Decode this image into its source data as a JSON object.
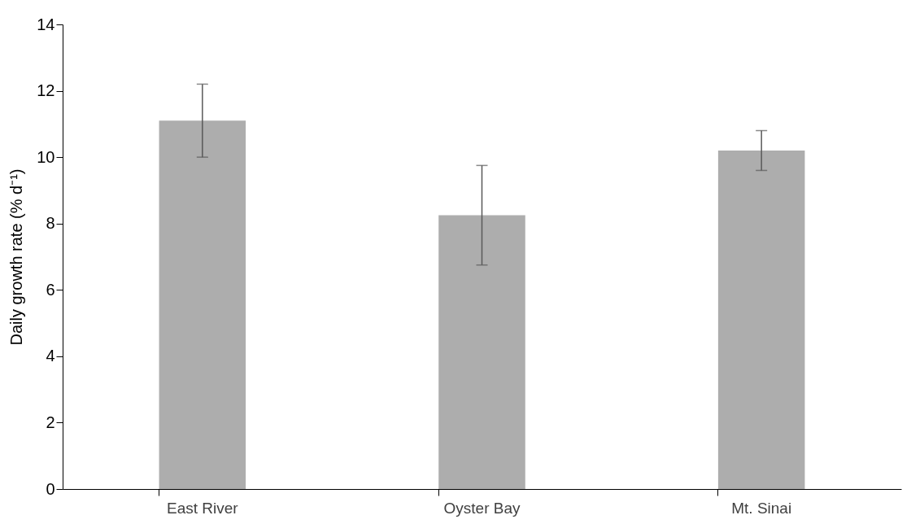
{
  "chart_data": {
    "type": "bar",
    "ylabel": "Daily growth rate (% d⁻¹)",
    "categories": [
      "East River",
      "Oyster Bay",
      "Mt. Sinai"
    ],
    "values": [
      11.1,
      8.25,
      10.2
    ],
    "errors": [
      1.1,
      1.5,
      0.6
    ],
    "color": "#adadad",
    "ylim": [
      0,
      14
    ],
    "yticks": [
      0,
      2,
      4,
      6,
      8,
      10,
      12,
      14
    ],
    "grid": false
  }
}
